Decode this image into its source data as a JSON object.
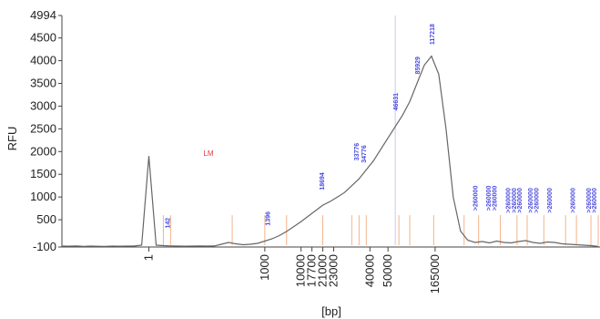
{
  "chart_data": {
    "type": "line",
    "title": "",
    "xlabel": "[bp]",
    "ylabel": "RFU",
    "ylim": [
      -100,
      4994
    ],
    "y_ticks": [
      "4994",
      "4500",
      "4000",
      "3500",
      "3000",
      "2500",
      "2000",
      "1500",
      "1000",
      "500",
      "-100"
    ],
    "x_tick_labels": [
      "1",
      "1000",
      "10000",
      "17700",
      "21000",
      "23000",
      "40000",
      "50000",
      "165000"
    ],
    "grid": false,
    "legend": "none",
    "colors": {
      "trace": "#666666",
      "peak_label": "#4a4ae0",
      "marker": "#e03a3a",
      "ladder_line": "#f2b48a",
      "axis": "#444444"
    },
    "series": [
      {
        "values_description_free": true,
        "points": [
          [
            0,
            -80
          ],
          [
            1,
            -82
          ],
          [
            2,
            -78
          ],
          [
            3,
            -85
          ],
          [
            4,
            -80
          ],
          [
            5,
            -83
          ],
          [
            6,
            -85
          ],
          [
            7,
            -80
          ],
          [
            8,
            -82
          ],
          [
            9,
            -80
          ],
          [
            10,
            -78
          ],
          [
            11,
            -60
          ],
          [
            12,
            1900
          ],
          [
            13,
            -60
          ],
          [
            14,
            -70
          ],
          [
            15,
            -75
          ],
          [
            16,
            -80
          ],
          [
            17,
            -82
          ],
          [
            18,
            -80
          ],
          [
            19,
            -78
          ],
          [
            20,
            -80
          ],
          [
            21,
            -78
          ],
          [
            22,
            -40
          ],
          [
            23,
            0
          ],
          [
            24,
            -30
          ],
          [
            25,
            -50
          ],
          [
            26,
            -40
          ],
          [
            27,
            -20
          ],
          [
            28,
            30
          ],
          [
            29,
            80
          ],
          [
            30,
            150
          ],
          [
            31,
            240
          ],
          [
            32,
            350
          ],
          [
            33,
            460
          ],
          [
            34,
            580
          ],
          [
            35,
            700
          ],
          [
            36,
            820
          ],
          [
            37,
            900
          ],
          [
            38,
            1000
          ],
          [
            39,
            1100
          ],
          [
            40,
            1250
          ],
          [
            41,
            1400
          ],
          [
            42,
            1600
          ],
          [
            43,
            1800
          ],
          [
            44,
            2050
          ],
          [
            45,
            2300
          ],
          [
            46,
            2550
          ],
          [
            47,
            2800
          ],
          [
            48,
            3100
          ],
          [
            49,
            3500
          ],
          [
            50,
            3900
          ],
          [
            51,
            4100
          ],
          [
            52,
            3700
          ],
          [
            53,
            2500
          ],
          [
            54,
            1000
          ],
          [
            55,
            250
          ],
          [
            56,
            50
          ],
          [
            57,
            0
          ],
          [
            58,
            20
          ],
          [
            59,
            -10
          ],
          [
            60,
            30
          ],
          [
            61,
            0
          ],
          [
            62,
            -10
          ],
          [
            63,
            20
          ],
          [
            64,
            40
          ],
          [
            65,
            0
          ],
          [
            66,
            -20
          ],
          [
            67,
            10
          ],
          [
            68,
            0
          ],
          [
            69,
            -30
          ],
          [
            70,
            -40
          ],
          [
            71,
            -50
          ],
          [
            72,
            -60
          ],
          [
            73,
            -70
          ],
          [
            74,
            -85
          ]
        ]
      }
    ],
    "marker_label": "LM",
    "peak_labels": [
      {
        "text": "142",
        "at": 14.5,
        "y": 310
      },
      {
        "text": "1396",
        "at": 28.3,
        "y": 370
      },
      {
        "text": "18694",
        "at": 35.8,
        "y": 1150
      },
      {
        "text": "33776",
        "at": 40.6,
        "y": 1800
      },
      {
        "text": "34776",
        "at": 41.6,
        "y": 1750
      },
      {
        "text": "46631",
        "at": 46.0,
        "y": 2900
      },
      {
        "text": "85929",
        "at": 49.0,
        "y": 3700
      },
      {
        "text": "117218",
        "at": 51.0,
        "y": 4350
      },
      {
        "text": ">260000",
        "at": 57.0,
        "y": 700
      },
      {
        "text": ">260000",
        "at": 58.8,
        "y": 700
      },
      {
        "text": ">260000",
        "at": 59.6,
        "y": 700
      },
      {
        "text": ">260000",
        "at": 61.5,
        "y": 650
      },
      {
        "text": ">260000",
        "at": 62.3,
        "y": 650
      },
      {
        "text": ">260000",
        "at": 63.1,
        "y": 650
      },
      {
        "text": ">260000",
        "at": 64.6,
        "y": 650
      },
      {
        "text": ">260000",
        "at": 65.4,
        "y": 650
      },
      {
        "text": ">260000",
        "at": 67.2,
        "y": 650
      },
      {
        "text": ">260000",
        "at": 70.4,
        "y": 650
      },
      {
        "text": ">260000",
        "at": 72.6,
        "y": 650
      },
      {
        "text": ">260000",
        "at": 73.4,
        "y": 650
      }
    ],
    "ladder_positions": [
      14.0,
      15.0,
      23.5,
      28.0,
      31.0,
      36.0,
      40.0,
      41.0,
      42.0,
      46.5,
      48.0,
      51.3,
      55.5,
      57.5,
      60.5,
      62.8,
      64.2,
      66.5,
      69.5,
      71.0,
      73.0,
      74.0
    ],
    "x_tick_positions": [
      12.0,
      28.0,
      33.0,
      34.5,
      36.0,
      37.5,
      42.5,
      45.0,
      51.5
    ],
    "highlight_positions": [
      46.0
    ]
  }
}
